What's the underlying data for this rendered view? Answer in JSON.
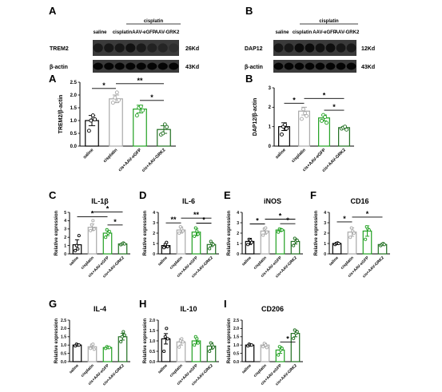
{
  "colors": {
    "saline": "#000000",
    "cisplatin": "#a9a9a9",
    "aav_egfp": "#22a122",
    "aav_grk2": "#1f6e1f"
  },
  "blots": [
    {
      "panel": "A",
      "header": {
        "top": "cisplatin",
        "lanes": [
          "saline",
          "cisplatin",
          "AAV-eGFP",
          "AAV-GRK2"
        ]
      },
      "rows": [
        {
          "name": "TREM2",
          "size": "26Kd"
        },
        {
          "name": "β-actin",
          "size": "43Kd"
        }
      ]
    },
    {
      "panel": "B",
      "header": {
        "top": "cisplatin",
        "lanes": [
          "saline",
          "cisplatin",
          "AAV-eGFP",
          "AAV-GRK2"
        ]
      },
      "rows": [
        {
          "name": "DAP12",
          "size": "12Kd"
        },
        {
          "name": "β-actin",
          "size": "43Kd"
        }
      ]
    }
  ],
  "chart_data": [
    {
      "panel": "A",
      "type": "bar",
      "title": "",
      "ylabel": "TREM2/β-actin",
      "ylim": [
        0,
        2.5
      ],
      "yticks": [
        "0.0",
        "0.5",
        "1.0",
        "1.5",
        "2.0",
        "2.5"
      ],
      "categories": [
        "saline",
        "cisplatin",
        "cis+AAV-eGFP",
        "cis+AAV-GRK2"
      ],
      "values": [
        1.0,
        1.85,
        1.45,
        0.65
      ],
      "errors": [
        0.2,
        0.15,
        0.15,
        0.15
      ],
      "points": [
        [
          0.6,
          1.0,
          1.2,
          1.05
        ],
        [
          1.7,
          1.9,
          2.1,
          1.8
        ],
        [
          1.2,
          1.5,
          1.55,
          1.4
        ],
        [
          0.45,
          0.5,
          0.85,
          0.75
        ]
      ],
      "sig": [
        {
          "a": 0,
          "b": 1,
          "label": "*"
        },
        {
          "a": 1,
          "b": 3,
          "label": "**"
        },
        {
          "a": 2,
          "b": 3,
          "label": "*"
        }
      ]
    },
    {
      "panel": "B",
      "type": "bar",
      "title": "",
      "ylabel": "DAP12/β-actin",
      "ylim": [
        0,
        3
      ],
      "yticks": [
        "0",
        "1",
        "2",
        "3"
      ],
      "categories": [
        "saline",
        "cisplatin",
        "cis+AAV-eGFP",
        "cis+AAV-GRK2"
      ],
      "values": [
        1.0,
        1.8,
        1.45,
        0.95
      ],
      "errors": [
        0.2,
        0.2,
        0.15,
        0.05
      ],
      "points": [
        [
          0.6,
          1.0,
          1.1,
          0.9
        ],
        [
          1.4,
          1.9,
          1.7,
          1.55
        ],
        [
          1.3,
          1.6,
          1.5,
          1.2
        ],
        [
          0.9,
          0.95,
          1.0,
          0.85
        ]
      ],
      "sig": [
        {
          "a": 0,
          "b": 1,
          "label": "*"
        },
        {
          "a": 1,
          "b": 3,
          "label": "*"
        },
        {
          "a": 2,
          "b": 3,
          "label": "*"
        }
      ]
    },
    {
      "panel": "C",
      "type": "bar",
      "title": "IL-1β",
      "ylabel": "Relative expression",
      "ylim": [
        0,
        5
      ],
      "yticks": [
        "0",
        "1",
        "2",
        "3",
        "4",
        "5"
      ],
      "categories": [
        "saline",
        "cisplatin",
        "cis+AAV-eGFP",
        "cis+AAV-GRK2"
      ],
      "values": [
        1.1,
        3.2,
        2.5,
        1.2
      ],
      "errors": [
        0.6,
        0.4,
        0.3,
        0.1
      ],
      "points": [
        [
          0.4,
          1.0,
          0.6,
          2.2
        ],
        [
          2.8,
          3.5,
          4.0,
          3.0
        ],
        [
          2.0,
          2.9,
          2.5,
          2.7
        ],
        [
          1.1,
          1.2,
          1.3,
          1.2
        ]
      ],
      "sig": [
        {
          "a": 0,
          "b": 2,
          "label": "*"
        },
        {
          "a": 1,
          "b": 3,
          "label": "*"
        },
        {
          "a": 2,
          "b": 3,
          "label": "*"
        }
      ]
    },
    {
      "panel": "D",
      "type": "bar",
      "title": "IL-6",
      "ylabel": "Relative expression",
      "ylim": [
        0,
        4
      ],
      "yticks": [
        "0",
        "1",
        "2",
        "3",
        "4"
      ],
      "categories": [
        "saline",
        "cisplatin",
        "cis+AAV-eGFP",
        "cis+AAV-GRK2"
      ],
      "values": [
        0.8,
        2.3,
        2.1,
        0.9
      ],
      "errors": [
        0.2,
        0.3,
        0.35,
        0.2
      ],
      "points": [
        [
          0.6,
          0.9,
          1.1,
          0.7
        ],
        [
          2.0,
          2.6,
          2.4,
          2.2
        ],
        [
          1.7,
          2.5,
          2.2,
          1.9
        ],
        [
          0.5,
          1.2,
          1.0,
          0.9
        ]
      ],
      "sig": [
        {
          "a": 0,
          "b": 1,
          "label": "**"
        },
        {
          "a": 1,
          "b": 3,
          "label": "**"
        },
        {
          "a": 2,
          "b": 3,
          "label": "*"
        }
      ]
    },
    {
      "panel": "E",
      "type": "bar",
      "title": "iNOS",
      "ylabel": "Relative expression",
      "ylim": [
        0,
        4
      ],
      "yticks": [
        "0",
        "1",
        "2",
        "3",
        "4"
      ],
      "categories": [
        "saline",
        "cisplatin",
        "cis+AAV-eGFP",
        "cis+AAV-GRK2"
      ],
      "values": [
        1.2,
        2.2,
        2.3,
        1.2
      ],
      "errors": [
        0.3,
        0.3,
        0.15,
        0.25
      ],
      "points": [
        [
          0.9,
          1.4,
          1.3,
          1.1
        ],
        [
          1.8,
          2.4,
          2.5,
          2.1
        ],
        [
          2.1,
          2.4,
          2.3,
          2.3
        ],
        [
          0.8,
          1.5,
          1.2,
          1.3
        ]
      ],
      "sig": [
        {
          "a": 0,
          "b": 1,
          "label": "*"
        },
        {
          "a": 1,
          "b": 3,
          "label": "*"
        },
        {
          "a": 2,
          "b": 3,
          "label": "*"
        }
      ]
    },
    {
      "panel": "F",
      "type": "bar",
      "title": "CD16",
      "ylabel": "Relative expression",
      "ylim": [
        0,
        4
      ],
      "yticks": [
        "0",
        "1",
        "2",
        "3",
        "4"
      ],
      "categories": [
        "saline",
        "cisplatin",
        "cis+AAV-eGFP",
        "cis+AAV-GRK2"
      ],
      "values": [
        1.0,
        2.1,
        2.2,
        0.9
      ],
      "errors": [
        0.1,
        0.4,
        0.5,
        0.1
      ],
      "points": [
        [
          0.9,
          1.0,
          1.05,
          1.0
        ],
        [
          1.6,
          2.5,
          2.2,
          2.0
        ],
        [
          1.4,
          2.6,
          2.4,
          2.3
        ],
        [
          0.8,
          0.9,
          1.0,
          0.9
        ]
      ],
      "sig": [
        {
          "a": 0,
          "b": 1,
          "label": "*"
        },
        {
          "a": 1,
          "b": 3,
          "label": "*"
        }
      ]
    },
    {
      "panel": "G",
      "type": "bar",
      "title": "IL-4",
      "ylabel": "Relative expression",
      "ylim": [
        0,
        2.5
      ],
      "yticks": [
        "0.0",
        "0.5",
        "1.0",
        "1.5",
        "2.0",
        "2.5"
      ],
      "categories": [
        "saline",
        "cisplatin",
        "cis+AAV-eGFP",
        "cis+AAV-GRK2"
      ],
      "values": [
        1.0,
        0.9,
        0.85,
        1.5
      ],
      "errors": [
        0.05,
        0.1,
        0.05,
        0.2
      ],
      "points": [
        [
          0.95,
          1.05,
          1.0,
          1.0
        ],
        [
          0.8,
          1.0,
          1.05,
          0.75
        ],
        [
          0.8,
          0.9,
          0.85,
          0.85
        ],
        [
          1.2,
          1.5,
          1.8,
          1.6
        ]
      ],
      "sig": []
    },
    {
      "panel": "H",
      "type": "bar",
      "title": "IL-10",
      "ylabel": "Relative expression",
      "ylim": [
        0,
        2.0
      ],
      "yticks": [
        "0.0",
        "0.5",
        "1.0",
        "1.5",
        "2.0"
      ],
      "categories": [
        "saline",
        "cisplatin",
        "cis+AAV-eGFP",
        "cis+AAV-GRK2"
      ],
      "values": [
        1.1,
        0.95,
        1.0,
        0.75
      ],
      "errors": [
        0.25,
        0.15,
        0.15,
        0.15
      ],
      "points": [
        [
          0.5,
          1.2,
          1.6,
          1.1
        ],
        [
          0.7,
          1.0,
          1.1,
          0.95
        ],
        [
          0.8,
          1.2,
          1.1,
          0.9
        ],
        [
          0.5,
          0.9,
          0.8,
          0.7
        ]
      ],
      "sig": []
    },
    {
      "panel": "I",
      "type": "bar",
      "title": "CD206",
      "ylabel": "Relative expression",
      "ylim": [
        0,
        2.5
      ],
      "yticks": [
        "0.0",
        "0.5",
        "1.0",
        "1.5",
        "2.0",
        "2.5"
      ],
      "categories": [
        "saline",
        "cisplatin",
        "cis+AAV-eGFP",
        "cis+AAV-GRK2"
      ],
      "values": [
        1.0,
        1.0,
        0.7,
        1.7
      ],
      "errors": [
        0.05,
        0.1,
        0.2,
        0.2
      ],
      "points": [
        [
          0.95,
          1.05,
          1.0,
          1.0
        ],
        [
          0.9,
          1.1,
          1.0,
          0.85
        ],
        [
          0.4,
          0.9,
          0.7,
          0.8
        ],
        [
          1.4,
          1.9,
          1.7,
          1.8
        ]
      ],
      "sig": [
        {
          "a": 2,
          "b": 3,
          "label": "*"
        }
      ]
    }
  ]
}
